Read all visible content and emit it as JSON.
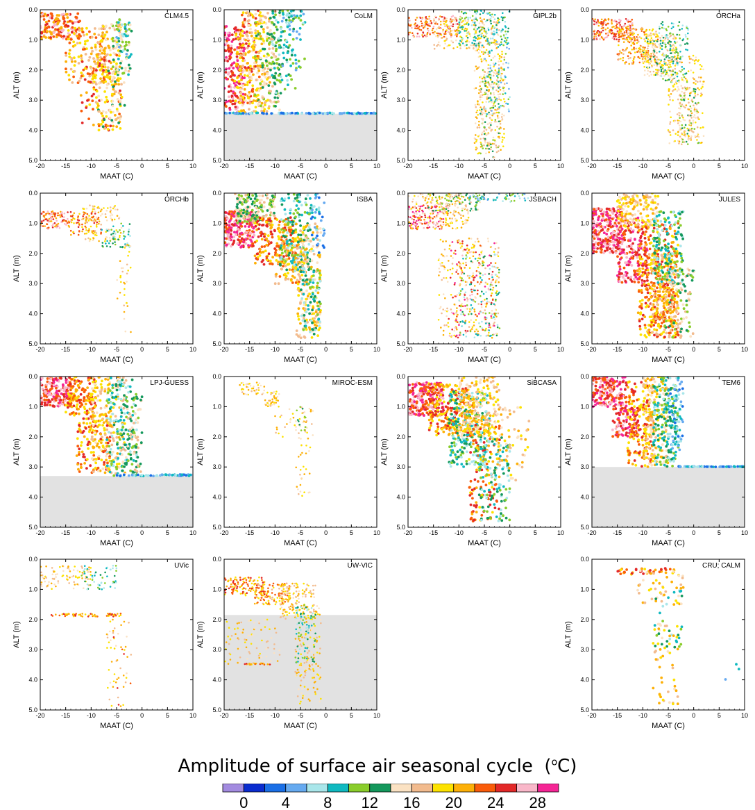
{
  "chart_data": [
    {
      "type": "scatter",
      "panel_title": "CLM4.5",
      "xlabel": "MAAT (C)",
      "ylabel": "ALT (m)",
      "xlim": [
        -20,
        10
      ],
      "ylim": [
        0,
        5
      ],
      "y_inverted": true,
      "ceiling_depth": null,
      "point_size": "medium",
      "clusters": [
        [
          -20,
          -12,
          0.1,
          1.0,
          26,
          150
        ],
        [
          -15,
          -7,
          0.6,
          2.5,
          22,
          120
        ],
        [
          -10,
          -4,
          0.5,
          2.5,
          20,
          120
        ],
        [
          -6,
          -2,
          0.4,
          2.2,
          15,
          80
        ],
        [
          -12,
          -4,
          1.5,
          4.0,
          24,
          90
        ],
        [
          -9,
          -3,
          2.0,
          4.0,
          18,
          60
        ],
        [
          -5,
          -3,
          0.3,
          1.5,
          10,
          20
        ]
      ]
    },
    {
      "type": "scatter",
      "panel_title": "CoLM",
      "xlabel": "MAAT (C)",
      "ylabel": "ALT (m)",
      "xlim": [
        -20,
        10
      ],
      "ylim": [
        0,
        5
      ],
      "y_inverted": true,
      "ceiling_depth": 3.45,
      "point_size": "medium",
      "clusters": [
        [
          -20,
          -16,
          0.5,
          3.45,
          28,
          180
        ],
        [
          -18,
          -13,
          0.0,
          3.45,
          24,
          120
        ],
        [
          -17,
          -11,
          0.0,
          3.45,
          20,
          180
        ],
        [
          -14,
          -9,
          0.0,
          3.4,
          16,
          120
        ],
        [
          -11,
          -6,
          0.0,
          2.8,
          12,
          100
        ],
        [
          -9,
          -4,
          0.0,
          2.0,
          10,
          50
        ],
        [
          -20,
          10,
          3.42,
          3.45,
          8,
          120
        ]
      ]
    },
    {
      "type": "scatter",
      "panel_title": "GIPL2b",
      "xlabel": "MAAT (C)",
      "ylabel": "ALT (m)",
      "xlim": [
        -20,
        10
      ],
      "ylim": [
        0,
        5
      ],
      "y_inverted": true,
      "ceiling_depth": null,
      "point_size": "small",
      "clusters": [
        [
          -20,
          -10,
          0.2,
          0.9,
          26,
          160
        ],
        [
          -15,
          -2,
          0.2,
          1.3,
          20,
          200
        ],
        [
          -10,
          0,
          0.0,
          1.2,
          12,
          160
        ],
        [
          -7,
          -1,
          1.3,
          4.8,
          20,
          260
        ],
        [
          -6,
          -2,
          2.0,
          4.9,
          16,
          120
        ],
        [
          -5,
          0,
          1.0,
          3.5,
          10,
          80
        ]
      ]
    },
    {
      "type": "scatter",
      "panel_title": "ORCHa",
      "xlabel": "MAAT (C)",
      "ylabel": "ALT (m)",
      "xlim": [
        -20,
        10
      ],
      "ylim": [
        0,
        5
      ],
      "y_inverted": true,
      "ceiling_depth": null,
      "point_size": "small",
      "clusters": [
        [
          -20,
          -12,
          0.3,
          1.0,
          26,
          180
        ],
        [
          -15,
          -7,
          0.6,
          1.8,
          22,
          220
        ],
        [
          -10,
          -3,
          0.8,
          2.2,
          18,
          220
        ],
        [
          -7,
          -1,
          0.4,
          2.4,
          12,
          120
        ],
        [
          -5,
          2,
          1.5,
          4.5,
          20,
          200
        ],
        [
          -3,
          1,
          2.5,
          4.5,
          16,
          100
        ]
      ]
    },
    {
      "type": "scatter",
      "panel_title": "ORCHb",
      "xlabel": "MAAT (C)",
      "ylabel": "ALT (m)",
      "xlim": [
        -20,
        10
      ],
      "ylim": [
        0,
        5
      ],
      "y_inverted": true,
      "ceiling_depth": null,
      "point_size": "small",
      "clusters": [
        [
          -20,
          -14,
          0.6,
          1.2,
          26,
          100
        ],
        [
          -14,
          -8,
          0.6,
          1.4,
          24,
          80
        ],
        [
          -12,
          -4,
          0.4,
          1.6,
          20,
          90
        ],
        [
          -8,
          -2,
          1.0,
          1.8,
          12,
          50
        ],
        [
          -5,
          -2,
          1.7,
          3.5,
          20,
          25
        ],
        [
          -4,
          -2,
          3.5,
          4.8,
          20,
          8
        ]
      ]
    },
    {
      "type": "scatter",
      "panel_title": "ISBA",
      "xlabel": "MAAT (C)",
      "ylabel": "ALT (m)",
      "xlim": [
        -20,
        10
      ],
      "ylim": [
        0,
        5
      ],
      "y_inverted": true,
      "ceiling_depth": null,
      "point_size": "medium",
      "clusters": [
        [
          -20,
          -14,
          0.6,
          1.8,
          28,
          200
        ],
        [
          -18,
          -10,
          0.0,
          1.0,
          16,
          180
        ],
        [
          -14,
          -6,
          0.8,
          2.4,
          24,
          180
        ],
        [
          -10,
          -4,
          1.5,
          3.0,
          22,
          120
        ],
        [
          -9,
          -3,
          0.0,
          2.6,
          12,
          160
        ],
        [
          -6,
          -1,
          1.0,
          4.8,
          20,
          180
        ],
        [
          -5,
          -1,
          2.5,
          4.8,
          12,
          80
        ],
        [
          -3,
          0,
          0.0,
          2.0,
          8,
          40
        ]
      ]
    },
    {
      "type": "scatter",
      "panel_title": "JSBACH",
      "xlabel": "MAAT (C)",
      "ylabel": "ALT (m)",
      "xlim": [
        -20,
        10
      ],
      "ylim": [
        0,
        5
      ],
      "y_inverted": true,
      "ceiling_depth": null,
      "point_size": "small",
      "clusters": [
        [
          -20,
          -12,
          0.4,
          1.2,
          28,
          120
        ],
        [
          -20,
          -8,
          0.0,
          1.2,
          20,
          160
        ],
        [
          -16,
          -5,
          0.0,
          0.6,
          16,
          90
        ],
        [
          -14,
          -2,
          1.5,
          4.8,
          20,
          260
        ],
        [
          -12,
          -3,
          1.5,
          4.8,
          28,
          120
        ],
        [
          -10,
          -2,
          2.0,
          4.8,
          12,
          120
        ],
        [
          -8,
          4,
          0.0,
          0.3,
          10,
          60
        ]
      ]
    },
    {
      "type": "scatter",
      "panel_title": "JULES",
      "xlabel": "MAAT (C)",
      "ylabel": "ALT (m)",
      "xlim": [
        -20,
        10
      ],
      "ylim": [
        0,
        5
      ],
      "y_inverted": true,
      "ceiling_depth": null,
      "point_size": "medium",
      "clusters": [
        [
          -20,
          -14,
          0.5,
          2.0,
          28,
          260
        ],
        [
          -15,
          -9,
          0.8,
          3.0,
          28,
          200
        ],
        [
          -15,
          -7,
          0.0,
          1.2,
          20,
          150
        ],
        [
          -11,
          -3,
          1.0,
          4.8,
          24,
          320
        ],
        [
          -9,
          -3,
          2.0,
          4.8,
          22,
          220
        ],
        [
          -8,
          -2,
          0.6,
          3.0,
          12,
          160
        ],
        [
          -6,
          0,
          2.5,
          4.8,
          16,
          100
        ]
      ]
    },
    {
      "type": "scatter",
      "panel_title": "LPJ-GUESS",
      "xlabel": "MAAT (C)",
      "ylabel": "ALT (m)",
      "xlim": [
        -20,
        10
      ],
      "ylim": [
        0,
        5
      ],
      "y_inverted": true,
      "ceiling_depth": 3.3,
      "point_size": "medium",
      "clusters": [
        [
          -20,
          -14,
          0.0,
          1.0,
          28,
          180
        ],
        [
          -15,
          -9,
          0.0,
          1.3,
          24,
          140
        ],
        [
          -13,
          -6,
          1.3,
          3.2,
          24,
          120
        ],
        [
          -10,
          -3,
          0.0,
          3.3,
          20,
          200
        ],
        [
          -7,
          -1,
          0.0,
          3.3,
          12,
          160
        ],
        [
          -4,
          0,
          0.6,
          3.3,
          16,
          80
        ],
        [
          -5,
          10,
          3.25,
          3.3,
          8,
          60
        ]
      ]
    },
    {
      "type": "scatter",
      "panel_title": "MIROC-ESM",
      "xlabel": "MAAT (C)",
      "ylabel": "ALT (m)",
      "xlim": [
        -20,
        10
      ],
      "ylim": [
        0,
        5
      ],
      "y_inverted": true,
      "ceiling_depth": null,
      "point_size": "small",
      "clusters": [
        [
          -17,
          -12,
          0.2,
          0.6,
          20,
          40
        ],
        [
          -12,
          -9,
          0.5,
          1.0,
          20,
          40
        ],
        [
          -10,
          -2,
          1.0,
          2.0,
          20,
          40
        ],
        [
          -6,
          -3,
          2.0,
          4.0,
          20,
          30
        ],
        [
          -6,
          -3,
          1.0,
          2.0,
          16,
          15
        ]
      ]
    },
    {
      "type": "scatter",
      "panel_title": "SiBCASA",
      "xlabel": "MAAT (C)",
      "ylabel": "ALT (m)",
      "xlim": [
        -20,
        10
      ],
      "ylim": [
        0,
        5
      ],
      "y_inverted": true,
      "ceiling_depth": null,
      "point_size": "medium",
      "clusters": [
        [
          -20,
          -13,
          0.2,
          1.3,
          28,
          220
        ],
        [
          -16,
          -7,
          0.2,
          2.0,
          24,
          260
        ],
        [
          -12,
          -4,
          0.5,
          3.0,
          12,
          240
        ],
        [
          -10,
          -2,
          0.0,
          2.0,
          20,
          200
        ],
        [
          -8,
          -2,
          1.5,
          4.8,
          24,
          140
        ],
        [
          -6,
          0,
          2.0,
          4.8,
          12,
          120
        ],
        [
          -3,
          4,
          1.0,
          3.5,
          20,
          60
        ]
      ]
    },
    {
      "type": "scatter",
      "panel_title": "TEM6",
      "xlabel": "MAAT (C)",
      "ylabel": "ALT (m)",
      "xlim": [
        -20,
        10
      ],
      "ylim": [
        0,
        5
      ],
      "y_inverted": true,
      "ceiling_depth": 3.0,
      "point_size": "medium",
      "clusters": [
        [
          -20,
          -13,
          0.0,
          1.0,
          28,
          180
        ],
        [
          -16,
          -11,
          1.0,
          2.0,
          28,
          100
        ],
        [
          -13,
          -8,
          0.0,
          3.0,
          24,
          160
        ],
        [
          -10,
          -5,
          0.0,
          3.0,
          20,
          200
        ],
        [
          -8,
          -3,
          0.0,
          3.0,
          12,
          200
        ],
        [
          -5,
          -2,
          0.0,
          2.5,
          8,
          60
        ],
        [
          -3,
          10,
          2.98,
          3.0,
          8,
          60
        ]
      ]
    },
    {
      "type": "scatter",
      "panel_title": "UVic",
      "xlabel": "MAAT (C)",
      "ylabel": "ALT (m)",
      "xlim": [
        -20,
        10
      ],
      "ylim": [
        0,
        5
      ],
      "y_inverted": true,
      "ceiling_depth": null,
      "point_size": "small",
      "clusters": [
        [
          -20,
          -10,
          0.2,
          1.0,
          20,
          90
        ],
        [
          -12,
          -5,
          0.2,
          1.0,
          12,
          50
        ],
        [
          -18,
          -4,
          1.8,
          1.9,
          24,
          60
        ],
        [
          -7,
          -2,
          2.0,
          4.9,
          20,
          40
        ],
        [
          -7,
          -2,
          2.0,
          4.9,
          24,
          15
        ]
      ]
    },
    {
      "type": "scatter",
      "panel_title": "UW-VIC",
      "xlabel": "MAAT (C)",
      "ylabel": "ALT (m)",
      "xlim": [
        -20,
        10
      ],
      "ylim": [
        0,
        5
      ],
      "y_inverted": true,
      "ceiling_depth": 1.85,
      "point_size": "small",
      "clusters": [
        [
          -20,
          -12,
          0.6,
          1.2,
          24,
          120
        ],
        [
          -14,
          -7,
          0.8,
          1.5,
          22,
          120
        ],
        [
          -9,
          -2,
          0.8,
          2.0,
          20,
          120
        ],
        [
          -6,
          -1,
          1.5,
          4.8,
          20,
          150
        ],
        [
          -6,
          -2,
          1.5,
          3.5,
          12,
          80
        ],
        [
          -20,
          -9,
          2.0,
          3.5,
          20,
          80
        ],
        [
          -16,
          -11,
          3.45,
          3.5,
          24,
          25
        ]
      ]
    },
    {
      "type": "scatter",
      "panel_title": "CRU; CALM",
      "xlabel": "MAAT (C)",
      "ylabel": "ALT (m)",
      "xlim": [
        -20,
        10
      ],
      "ylim": [
        0,
        5
      ],
      "y_inverted": true,
      "ceiling_depth": null,
      "point_size": "medium",
      "clusters": [
        [
          -15,
          -3,
          0.3,
          0.5,
          24,
          40
        ],
        [
          -11,
          -2,
          0.3,
          1.5,
          20,
          45
        ],
        [
          -8,
          -2,
          1.0,
          3.0,
          12,
          30
        ],
        [
          -8,
          -3,
          2.0,
          4.8,
          20,
          50
        ],
        [
          6,
          9,
          3.4,
          4.8,
          8,
          3
        ]
      ]
    }
  ],
  "panel_layout": [
    [
      0,
      0
    ],
    [
      0,
      1
    ],
    [
      0,
      2
    ],
    [
      0,
      3
    ],
    [
      1,
      0
    ],
    [
      1,
      1
    ],
    [
      1,
      2
    ],
    [
      1,
      3
    ],
    [
      2,
      0
    ],
    [
      2,
      1
    ],
    [
      2,
      2
    ],
    [
      2,
      3
    ],
    [
      3,
      0
    ],
    [
      3,
      1
    ],
    [
      3,
      3
    ]
  ],
  "axis": {
    "xticks": [
      -20,
      -15,
      -10,
      -5,
      0,
      5,
      10
    ],
    "yticks": [
      0.0,
      1.0,
      2.0,
      3.0,
      4.0,
      5.0
    ],
    "xlabel": "MAAT (C)",
    "ylabel": "ALT (m)"
  },
  "ceiling_fill_color": "#e2e2e2",
  "legend": {
    "title": "Amplitude of surface air seasonal cycle",
    "unit_o": "o",
    "unit_c": "C",
    "tick_values": [
      "0",
      "4",
      "8",
      "12",
      "16",
      "20",
      "24",
      "28"
    ],
    "colors": [
      "#a38be0",
      "#0a2ccf",
      "#1a6fe6",
      "#66aaf0",
      "#a9e6ea",
      "#10b9c0",
      "#8acd2b",
      "#14985c",
      "#fbe2c3",
      "#f2bb8e",
      "#fde200",
      "#fdb008",
      "#fa5c0a",
      "#e32828",
      "#f9b7c9",
      "#f52595"
    ]
  }
}
